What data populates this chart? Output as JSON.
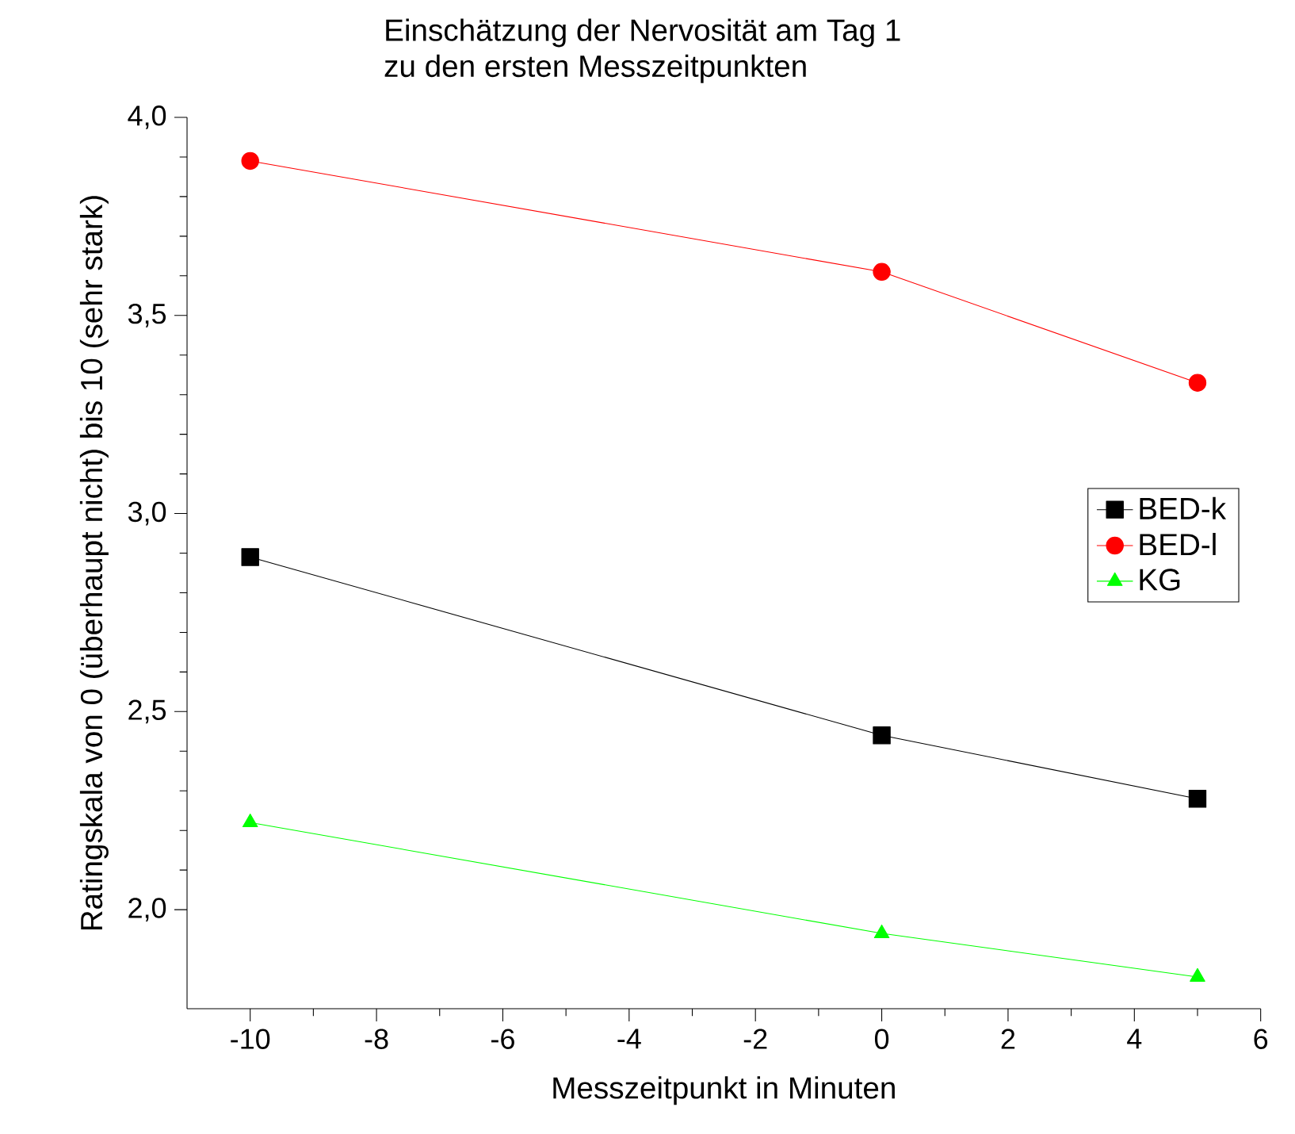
{
  "chart_data": {
    "type": "line",
    "title": "Einschätzung der Nervosität am Tag 1",
    "subtitle": "zu den ersten Messzeitpunkten",
    "xlabel": "Messzeitpunkt in Minuten",
    "ylabel": "Ratingskala von 0 (überhaupt nicht) bis 10 (sehr stark)",
    "x": [
      -10,
      0,
      5
    ],
    "series": [
      {
        "name": "BED-k",
        "color": "#000000",
        "marker": "square",
        "values": [
          2.89,
          2.44,
          2.28
        ]
      },
      {
        "name": "BED-l",
        "color": "#ff0000",
        "marker": "circle",
        "values": [
          3.89,
          3.61,
          3.33
        ]
      },
      {
        "name": "KG",
        "color": "#00ff00",
        "marker": "triangle",
        "values": [
          2.22,
          1.94,
          1.83
        ]
      }
    ],
    "xlim": [
      -11,
      6
    ],
    "ylim": [
      1.75,
      4.0
    ],
    "xticks": [
      -10,
      -8,
      -6,
      -4,
      -2,
      0,
      2,
      4,
      6
    ],
    "yticks": [
      {
        "value": 2.0,
        "label": "2,0"
      },
      {
        "value": 2.5,
        "label": "2,5"
      },
      {
        "value": 3.0,
        "label": "3,0"
      },
      {
        "value": 3.5,
        "label": "3,5"
      },
      {
        "value": 4.0,
        "label": "4,0"
      }
    ],
    "grid": false,
    "legend": "right",
    "line_style": "solid"
  }
}
